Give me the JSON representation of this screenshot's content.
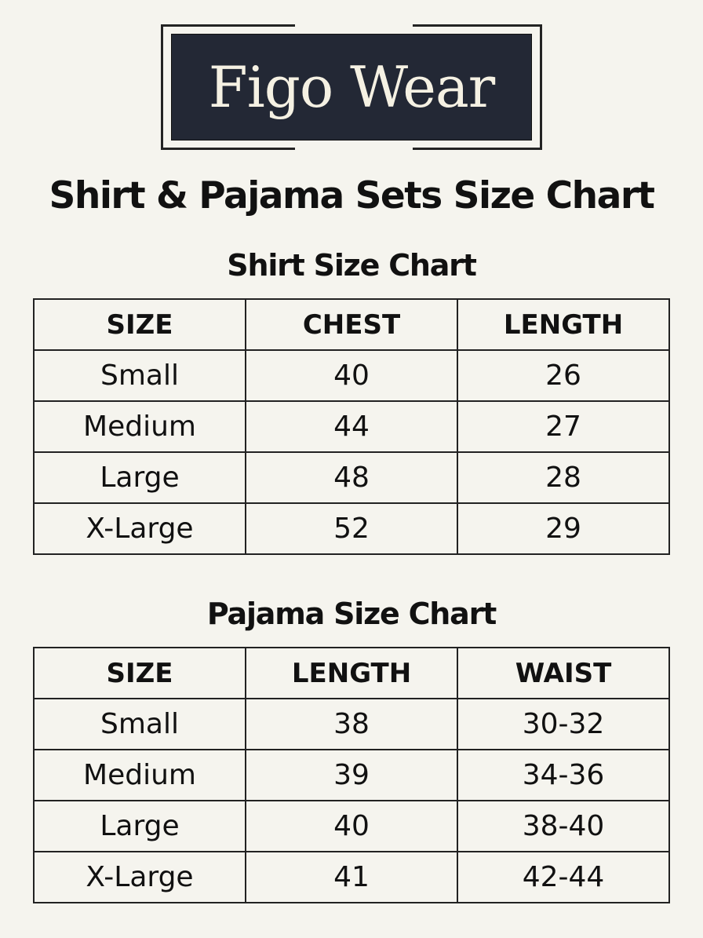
{
  "logo": {
    "text": "Figo Wear",
    "bg_color": "#232835",
    "text_color": "#f5f1e3"
  },
  "title": "Shirt & Pajama Sets Size Chart",
  "shirt": {
    "title": "Shirt Size Chart",
    "headers": [
      "SIZE",
      "CHEST",
      "LENGTH"
    ],
    "rows": [
      [
        "Small",
        "40",
        "26"
      ],
      [
        "Medium",
        "44",
        "27"
      ],
      [
        "Large",
        "48",
        "28"
      ],
      [
        "X-Large",
        "52",
        "29"
      ]
    ]
  },
  "pajama": {
    "title": "Pajama Size Chart",
    "headers": [
      "SIZE",
      "LENGTH",
      "WAIST"
    ],
    "rows": [
      [
        "Small",
        "38",
        "30-32"
      ],
      [
        "Medium",
        "39",
        "34-36"
      ],
      [
        "Large",
        "40",
        "38-40"
      ],
      [
        "X-Large",
        "41",
        "42-44"
      ]
    ]
  }
}
